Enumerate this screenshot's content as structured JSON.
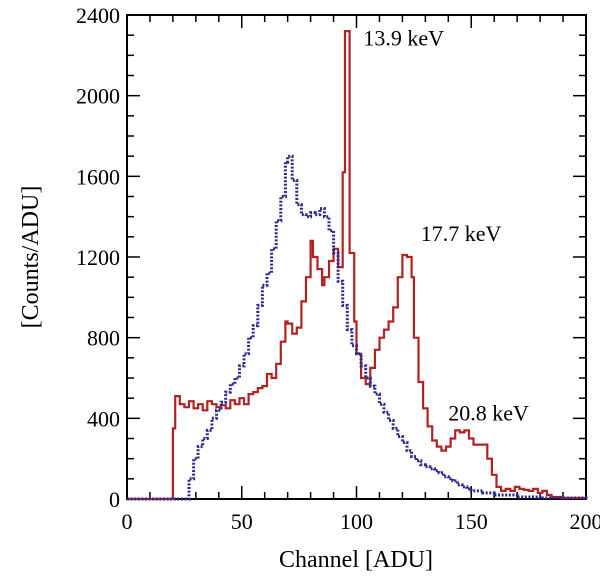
{
  "chart_data": {
    "type": "line",
    "xlabel": "Channel [ADU]",
    "ylabel": "[Counts/ADU]",
    "xlim": [
      0,
      200
    ],
    "ylim": [
      0,
      2400
    ],
    "x_ticks": [
      0,
      50,
      100,
      150,
      200
    ],
    "y_ticks": [
      0,
      400,
      800,
      1200,
      1600,
      2000,
      2400
    ],
    "grid": false,
    "series": [
      {
        "color": "#b22222",
        "style": "solid",
        "points": [
          [
            0,
            0
          ],
          [
            20,
            0
          ],
          [
            20,
            350
          ],
          [
            21,
            510
          ],
          [
            23,
            470
          ],
          [
            25,
            455
          ],
          [
            27,
            485
          ],
          [
            29,
            450
          ],
          [
            31,
            470
          ],
          [
            33,
            440
          ],
          [
            35,
            485
          ],
          [
            37,
            470
          ],
          [
            39,
            455
          ],
          [
            41,
            465
          ],
          [
            43,
            450
          ],
          [
            45,
            490
          ],
          [
            47,
            470
          ],
          [
            49,
            500
          ],
          [
            51,
            470
          ],
          [
            53,
            520
          ],
          [
            55,
            530
          ],
          [
            57,
            550
          ],
          [
            59,
            560
          ],
          [
            61,
            620
          ],
          [
            63,
            600
          ],
          [
            65,
            670
          ],
          [
            67,
            780
          ],
          [
            69,
            880
          ],
          [
            70,
            870
          ],
          [
            72,
            820
          ],
          [
            74,
            850
          ],
          [
            76,
            980
          ],
          [
            78,
            1100
          ],
          [
            80,
            1280
          ],
          [
            81,
            1200
          ],
          [
            83,
            1140
          ],
          [
            85,
            1060
          ],
          [
            86,
            1100
          ],
          [
            88,
            1180
          ],
          [
            90,
            1240
          ],
          [
            92,
            1150
          ],
          [
            94,
            1620
          ],
          [
            95,
            2320
          ],
          [
            97,
            1220
          ],
          [
            99,
            880
          ],
          [
            100,
            720
          ],
          [
            102,
            600
          ],
          [
            104,
            570
          ],
          [
            106,
            650
          ],
          [
            108,
            740
          ],
          [
            110,
            800
          ],
          [
            112,
            840
          ],
          [
            114,
            880
          ],
          [
            116,
            950
          ],
          [
            118,
            1100
          ],
          [
            120,
            1210
          ],
          [
            122,
            1200
          ],
          [
            124,
            1100
          ],
          [
            125,
            800
          ],
          [
            127,
            580
          ],
          [
            129,
            450
          ],
          [
            131,
            360
          ],
          [
            133,
            290
          ],
          [
            135,
            260
          ],
          [
            137,
            240
          ],
          [
            139,
            260
          ],
          [
            141,
            300
          ],
          [
            143,
            340
          ],
          [
            145,
            330
          ],
          [
            147,
            340
          ],
          [
            149,
            300
          ],
          [
            151,
            270
          ],
          [
            153,
            270
          ],
          [
            155,
            270
          ],
          [
            157,
            200
          ],
          [
            159,
            120
          ],
          [
            161,
            60
          ],
          [
            163,
            40
          ],
          [
            165,
            50
          ],
          [
            167,
            40
          ],
          [
            169,
            60
          ],
          [
            171,
            50
          ],
          [
            173,
            45
          ],
          [
            175,
            40
          ],
          [
            177,
            50
          ],
          [
            179,
            30
          ],
          [
            181,
            40
          ],
          [
            183,
            20
          ],
          [
            185,
            10
          ],
          [
            190,
            5
          ],
          [
            200,
            5
          ]
        ]
      },
      {
        "color": "#2a2a8c",
        "style": "dotted",
        "points": [
          [
            0,
            0
          ],
          [
            24,
            0
          ],
          [
            26,
            0
          ],
          [
            27,
            100
          ],
          [
            29,
            200
          ],
          [
            31,
            260
          ],
          [
            33,
            300
          ],
          [
            35,
            340
          ],
          [
            37,
            400
          ],
          [
            39,
            440
          ],
          [
            41,
            480
          ],
          [
            43,
            530
          ],
          [
            45,
            570
          ],
          [
            47,
            600
          ],
          [
            49,
            660
          ],
          [
            51,
            720
          ],
          [
            53,
            800
          ],
          [
            55,
            860
          ],
          [
            57,
            960
          ],
          [
            59,
            1060
          ],
          [
            61,
            1120
          ],
          [
            63,
            1240
          ],
          [
            65,
            1380
          ],
          [
            67,
            1500
          ],
          [
            69,
            1670
          ],
          [
            70,
            1700
          ],
          [
            72,
            1580
          ],
          [
            74,
            1460
          ],
          [
            76,
            1410
          ],
          [
            78,
            1400
          ],
          [
            80,
            1420
          ],
          [
            82,
            1410
          ],
          [
            84,
            1440
          ],
          [
            86,
            1400
          ],
          [
            88,
            1330
          ],
          [
            90,
            1220
          ],
          [
            92,
            1080
          ],
          [
            94,
            960
          ],
          [
            96,
            840
          ],
          [
            98,
            760
          ],
          [
            100,
            720
          ],
          [
            102,
            660
          ],
          [
            104,
            600
          ],
          [
            106,
            560
          ],
          [
            108,
            520
          ],
          [
            110,
            470
          ],
          [
            112,
            430
          ],
          [
            114,
            390
          ],
          [
            116,
            350
          ],
          [
            118,
            310
          ],
          [
            120,
            280
          ],
          [
            122,
            240
          ],
          [
            124,
            210
          ],
          [
            126,
            190
          ],
          [
            128,
            170
          ],
          [
            130,
            160
          ],
          [
            132,
            150
          ],
          [
            134,
            140
          ],
          [
            136,
            130
          ],
          [
            138,
            110
          ],
          [
            140,
            100
          ],
          [
            142,
            90
          ],
          [
            144,
            70
          ],
          [
            146,
            60
          ],
          [
            148,
            50
          ],
          [
            150,
            40
          ],
          [
            155,
            30
          ],
          [
            160,
            20
          ],
          [
            170,
            10
          ],
          [
            180,
            5
          ],
          [
            200,
            0
          ]
        ]
      }
    ],
    "annotations": [
      {
        "text": "13.9 keV",
        "x": 103,
        "y": 2250
      },
      {
        "text": "17.7 keV",
        "x": 128,
        "y": 1280
      },
      {
        "text": "20.8 keV",
        "x": 140,
        "y": 390
      }
    ]
  }
}
